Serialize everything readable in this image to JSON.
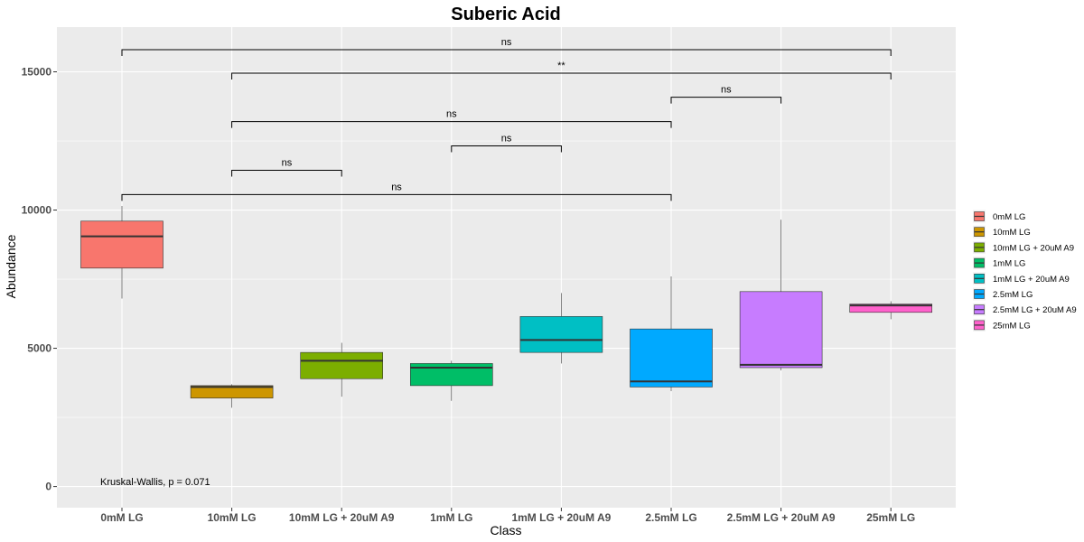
{
  "chart_data": {
    "type": "box",
    "title": "Suberic Acid",
    "xlabel": "Class",
    "ylabel": "Abundance",
    "ylim": [
      -700,
      16600
    ],
    "yticks": [
      0,
      5000,
      10000,
      15000
    ],
    "categories": [
      "0mM LG",
      "10mM LG",
      "10mM LG + 20uM A9",
      "1mM LG",
      "1mM LG + 20uM A9",
      "2.5mM LG",
      "2.5mM LG + 20uM A9",
      "25mM LG"
    ],
    "boxes": [
      {
        "name": "0mM LG",
        "color": "#F8766D",
        "min": 6800,
        "q1": 7900,
        "median": 9050,
        "q3": 9600,
        "max": 10150
      },
      {
        "name": "10mM LG",
        "color": "#CD9600",
        "min": 2850,
        "q1": 3200,
        "median": 3600,
        "q3": 3650,
        "max": 3700
      },
      {
        "name": "10mM LG + 20uM A9",
        "color": "#7CAE00",
        "min": 3250,
        "q1": 3900,
        "median": 4550,
        "q3": 4850,
        "max": 5200
      },
      {
        "name": "1mM LG",
        "color": "#00BE67",
        "min": 3100,
        "q1": 3650,
        "median": 4300,
        "q3": 4450,
        "max": 4550
      },
      {
        "name": "1mM LG + 20uM A9",
        "color": "#00BFC4",
        "min": 4450,
        "q1": 4850,
        "median": 5300,
        "q3": 6150,
        "max": 7000
      },
      {
        "name": "2.5mM LG",
        "color": "#00A9FF",
        "min": 3450,
        "q1": 3600,
        "median": 3800,
        "q3": 5700,
        "max": 7600
      },
      {
        "name": "2.5mM LG + 20uM A9",
        "color": "#C77CFF",
        "min": 4200,
        "q1": 4300,
        "median": 4400,
        "q3": 7050,
        "max": 9650
      },
      {
        "name": "25mM LG",
        "color": "#FF61CC",
        "min": 6050,
        "q1": 6300,
        "median": 6550,
        "q3": 6600,
        "max": 6700
      }
    ],
    "comparisons": [
      {
        "from": "0mM LG",
        "to": "25mM LG",
        "label": "ns",
        "y": 15800
      },
      {
        "from": "10mM LG",
        "to": "25mM LG",
        "label": "**",
        "y": 14950
      },
      {
        "from": "2.5mM LG",
        "to": "2.5mM LG + 20uM A9",
        "label": "ns",
        "y": 14080
      },
      {
        "from": "10mM LG",
        "to": "2.5mM LG",
        "label": "ns",
        "y": 13200
      },
      {
        "from": "1mM LG",
        "to": "1mM LG + 20uM A9",
        "label": "ns",
        "y": 12320
      },
      {
        "from": "10mM LG",
        "to": "10mM LG + 20uM A9",
        "label": "ns",
        "y": 11440
      },
      {
        "from": "0mM LG",
        "to": "2.5mM LG",
        "label": "ns",
        "y": 10560
      }
    ],
    "annotation": "Kruskal-Wallis, p = 0.071",
    "legend_position": "right",
    "grid": true
  }
}
